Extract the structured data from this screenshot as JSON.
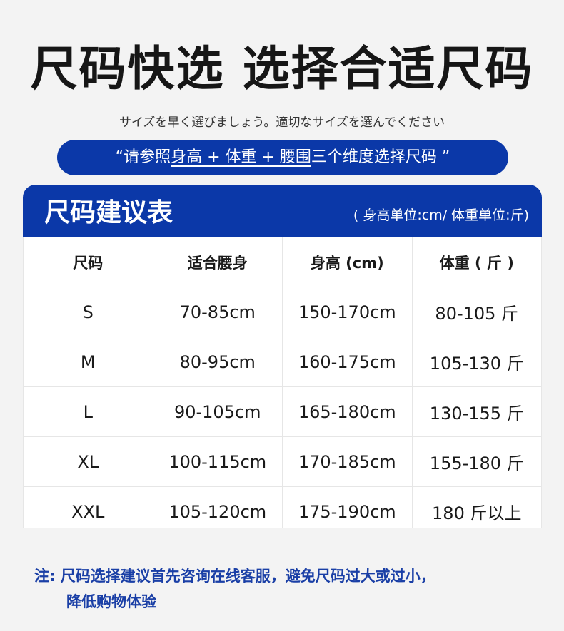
{
  "title": "尺码快选 选择合适尺码",
  "subtitle": "サイズを早く選びましょう。適切なサイズを選んでください",
  "banner": {
    "prefix": "“请参照",
    "underlined": "身高 + 体重 + 腰围",
    "suffix": "三个维度选择尺码 ”"
  },
  "table": {
    "title": "尺码建议表",
    "units": "( 身高单位:cm/ 体重单位:斤)",
    "headers": [
      "尺码",
      "适合腰身",
      "身高 (cm)",
      "体重 ( 斤 )"
    ],
    "rows": [
      [
        "S",
        "70-85cm",
        "150-170cm",
        "80-105 斤"
      ],
      [
        "M",
        "80-95cm",
        "160-175cm",
        "105-130 斤"
      ],
      [
        "L",
        "90-105cm",
        "165-180cm",
        "130-155 斤"
      ],
      [
        "XL",
        "100-115cm",
        "170-185cm",
        "155-180 斤"
      ],
      [
        "XXL",
        "105-120cm",
        "175-190cm",
        "180 斤以上"
      ]
    ]
  },
  "note": {
    "line1": "注: 尺码选择建议首先咨询在线客服，避免尺码过大或过小，",
    "line2": "降低购物体验"
  },
  "colors": {
    "accent": "#0b38a8",
    "background": "#f3f3f3",
    "note": "#1a3fa6"
  }
}
